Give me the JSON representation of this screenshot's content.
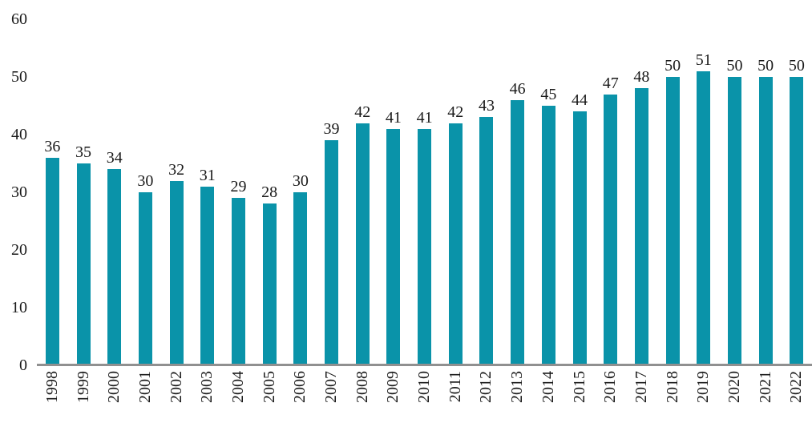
{
  "chart_data": {
    "type": "bar",
    "title": "",
    "xlabel": "",
    "ylabel": "",
    "categories": [
      "1998",
      "1999",
      "2000",
      "2001",
      "2002",
      "2003",
      "2004",
      "2005",
      "2006",
      "2007",
      "2008",
      "2009",
      "2010",
      "2011",
      "2012",
      "2013",
      "2014",
      "2015",
      "2016",
      "2017",
      "2018",
      "2019",
      "2020",
      "2021",
      "2022"
    ],
    "values": [
      36,
      35,
      34,
      30,
      32,
      31,
      29,
      28,
      30,
      39,
      42,
      41,
      41,
      42,
      43,
      46,
      45,
      44,
      47,
      48,
      50,
      51,
      50,
      50,
      50
    ],
    "ylim": [
      0,
      60
    ],
    "y_ticks": [
      0,
      10,
      20,
      30,
      40,
      50,
      60
    ],
    "grid": false,
    "legend": false,
    "data_labels": true,
    "bar_color": "#0a93a9",
    "axis_line_color": "#909090",
    "text_color": "#1a1a1a"
  }
}
